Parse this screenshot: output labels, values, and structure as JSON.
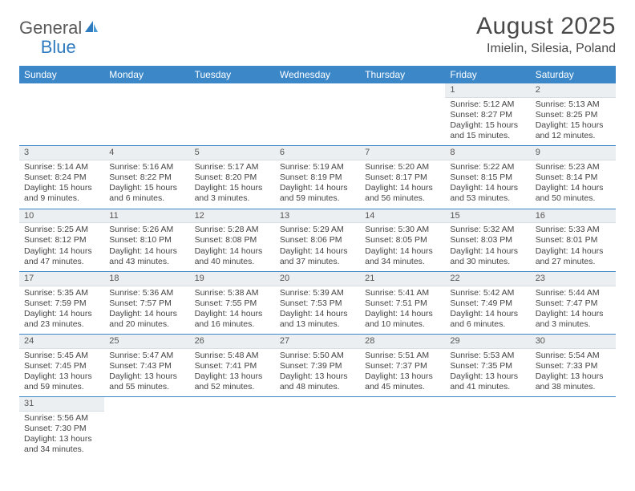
{
  "brand": {
    "part1": "General",
    "part2": "Blue"
  },
  "title": "August 2025",
  "location": "Imielin, Silesia, Poland",
  "colors": {
    "header_bg": "#3b87c8",
    "header_fg": "#ffffff",
    "daynum_bg": "#eceff1",
    "rule": "#3b87c8",
    "brand_gray": "#5a5a5a",
    "brand_blue": "#2f7bbf"
  },
  "weekdays": [
    "Sunday",
    "Monday",
    "Tuesday",
    "Wednesday",
    "Thursday",
    "Friday",
    "Saturday"
  ],
  "weeks": [
    [
      null,
      null,
      null,
      null,
      null,
      {
        "n": "1",
        "sr": "Sunrise: 5:12 AM",
        "ss": "Sunset: 8:27 PM",
        "dl1": "Daylight: 15 hours",
        "dl2": "and 15 minutes."
      },
      {
        "n": "2",
        "sr": "Sunrise: 5:13 AM",
        "ss": "Sunset: 8:25 PM",
        "dl1": "Daylight: 15 hours",
        "dl2": "and 12 minutes."
      }
    ],
    [
      {
        "n": "3",
        "sr": "Sunrise: 5:14 AM",
        "ss": "Sunset: 8:24 PM",
        "dl1": "Daylight: 15 hours",
        "dl2": "and 9 minutes."
      },
      {
        "n": "4",
        "sr": "Sunrise: 5:16 AM",
        "ss": "Sunset: 8:22 PM",
        "dl1": "Daylight: 15 hours",
        "dl2": "and 6 minutes."
      },
      {
        "n": "5",
        "sr": "Sunrise: 5:17 AM",
        "ss": "Sunset: 8:20 PM",
        "dl1": "Daylight: 15 hours",
        "dl2": "and 3 minutes."
      },
      {
        "n": "6",
        "sr": "Sunrise: 5:19 AM",
        "ss": "Sunset: 8:19 PM",
        "dl1": "Daylight: 14 hours",
        "dl2": "and 59 minutes."
      },
      {
        "n": "7",
        "sr": "Sunrise: 5:20 AM",
        "ss": "Sunset: 8:17 PM",
        "dl1": "Daylight: 14 hours",
        "dl2": "and 56 minutes."
      },
      {
        "n": "8",
        "sr": "Sunrise: 5:22 AM",
        "ss": "Sunset: 8:15 PM",
        "dl1": "Daylight: 14 hours",
        "dl2": "and 53 minutes."
      },
      {
        "n": "9",
        "sr": "Sunrise: 5:23 AM",
        "ss": "Sunset: 8:14 PM",
        "dl1": "Daylight: 14 hours",
        "dl2": "and 50 minutes."
      }
    ],
    [
      {
        "n": "10",
        "sr": "Sunrise: 5:25 AM",
        "ss": "Sunset: 8:12 PM",
        "dl1": "Daylight: 14 hours",
        "dl2": "and 47 minutes."
      },
      {
        "n": "11",
        "sr": "Sunrise: 5:26 AM",
        "ss": "Sunset: 8:10 PM",
        "dl1": "Daylight: 14 hours",
        "dl2": "and 43 minutes."
      },
      {
        "n": "12",
        "sr": "Sunrise: 5:28 AM",
        "ss": "Sunset: 8:08 PM",
        "dl1": "Daylight: 14 hours",
        "dl2": "and 40 minutes."
      },
      {
        "n": "13",
        "sr": "Sunrise: 5:29 AM",
        "ss": "Sunset: 8:06 PM",
        "dl1": "Daylight: 14 hours",
        "dl2": "and 37 minutes."
      },
      {
        "n": "14",
        "sr": "Sunrise: 5:30 AM",
        "ss": "Sunset: 8:05 PM",
        "dl1": "Daylight: 14 hours",
        "dl2": "and 34 minutes."
      },
      {
        "n": "15",
        "sr": "Sunrise: 5:32 AM",
        "ss": "Sunset: 8:03 PM",
        "dl1": "Daylight: 14 hours",
        "dl2": "and 30 minutes."
      },
      {
        "n": "16",
        "sr": "Sunrise: 5:33 AM",
        "ss": "Sunset: 8:01 PM",
        "dl1": "Daylight: 14 hours",
        "dl2": "and 27 minutes."
      }
    ],
    [
      {
        "n": "17",
        "sr": "Sunrise: 5:35 AM",
        "ss": "Sunset: 7:59 PM",
        "dl1": "Daylight: 14 hours",
        "dl2": "and 23 minutes."
      },
      {
        "n": "18",
        "sr": "Sunrise: 5:36 AM",
        "ss": "Sunset: 7:57 PM",
        "dl1": "Daylight: 14 hours",
        "dl2": "and 20 minutes."
      },
      {
        "n": "19",
        "sr": "Sunrise: 5:38 AM",
        "ss": "Sunset: 7:55 PM",
        "dl1": "Daylight: 14 hours",
        "dl2": "and 16 minutes."
      },
      {
        "n": "20",
        "sr": "Sunrise: 5:39 AM",
        "ss": "Sunset: 7:53 PM",
        "dl1": "Daylight: 14 hours",
        "dl2": "and 13 minutes."
      },
      {
        "n": "21",
        "sr": "Sunrise: 5:41 AM",
        "ss": "Sunset: 7:51 PM",
        "dl1": "Daylight: 14 hours",
        "dl2": "and 10 minutes."
      },
      {
        "n": "22",
        "sr": "Sunrise: 5:42 AM",
        "ss": "Sunset: 7:49 PM",
        "dl1": "Daylight: 14 hours",
        "dl2": "and 6 minutes."
      },
      {
        "n": "23",
        "sr": "Sunrise: 5:44 AM",
        "ss": "Sunset: 7:47 PM",
        "dl1": "Daylight: 14 hours",
        "dl2": "and 3 minutes."
      }
    ],
    [
      {
        "n": "24",
        "sr": "Sunrise: 5:45 AM",
        "ss": "Sunset: 7:45 PM",
        "dl1": "Daylight: 13 hours",
        "dl2": "and 59 minutes."
      },
      {
        "n": "25",
        "sr": "Sunrise: 5:47 AM",
        "ss": "Sunset: 7:43 PM",
        "dl1": "Daylight: 13 hours",
        "dl2": "and 55 minutes."
      },
      {
        "n": "26",
        "sr": "Sunrise: 5:48 AM",
        "ss": "Sunset: 7:41 PM",
        "dl1": "Daylight: 13 hours",
        "dl2": "and 52 minutes."
      },
      {
        "n": "27",
        "sr": "Sunrise: 5:50 AM",
        "ss": "Sunset: 7:39 PM",
        "dl1": "Daylight: 13 hours",
        "dl2": "and 48 minutes."
      },
      {
        "n": "28",
        "sr": "Sunrise: 5:51 AM",
        "ss": "Sunset: 7:37 PM",
        "dl1": "Daylight: 13 hours",
        "dl2": "and 45 minutes."
      },
      {
        "n": "29",
        "sr": "Sunrise: 5:53 AM",
        "ss": "Sunset: 7:35 PM",
        "dl1": "Daylight: 13 hours",
        "dl2": "and 41 minutes."
      },
      {
        "n": "30",
        "sr": "Sunrise: 5:54 AM",
        "ss": "Sunset: 7:33 PM",
        "dl1": "Daylight: 13 hours",
        "dl2": "and 38 minutes."
      }
    ],
    [
      {
        "n": "31",
        "sr": "Sunrise: 5:56 AM",
        "ss": "Sunset: 7:30 PM",
        "dl1": "Daylight: 13 hours",
        "dl2": "and 34 minutes."
      },
      null,
      null,
      null,
      null,
      null,
      null
    ]
  ]
}
